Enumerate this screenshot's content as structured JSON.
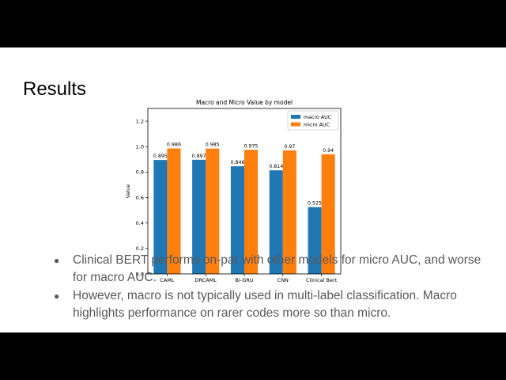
{
  "slide": {
    "title": "Results",
    "bullets": [
      "Clinical BERT performs on-par with other models for micro AUC, and worse for macro AUC.",
      "However, macro is not typically used in multi-label classification. Macro highlights performance on rarer codes more so than micro."
    ]
  },
  "chart_data": {
    "type": "bar",
    "title": "Macro and Micro Value by model",
    "xlabel": "",
    "ylabel": "Value",
    "categories": [
      "CAML",
      "DRCAML",
      "Bi-GRU",
      "CNN",
      "Clinical Bert"
    ],
    "series": [
      {
        "name": "macro AUC",
        "color": "#1f77b4",
        "values": [
          0.895,
          0.897,
          0.846,
          0.814,
          0.525
        ],
        "labels": [
          "0.895",
          "0.897",
          "0.846",
          "0.814",
          "0.525"
        ]
      },
      {
        "name": "micro AUC",
        "color": "#ff7f0e",
        "values": [
          0.986,
          0.985,
          0.975,
          0.97,
          0.94
        ],
        "labels": [
          "0.986",
          "0.985",
          "0.975",
          "0.97",
          "0.94"
        ]
      }
    ],
    "ylim": [
      0,
      1.3
    ],
    "yticks": [
      "0.0",
      "0.2",
      "0.4",
      "0.6",
      "0.8",
      "1.0",
      "1.2"
    ],
    "ytick_values": [
      0,
      0.2,
      0.4,
      0.6,
      0.8,
      1.0,
      1.2
    ],
    "legend_position": "top-right",
    "grid": false
  }
}
